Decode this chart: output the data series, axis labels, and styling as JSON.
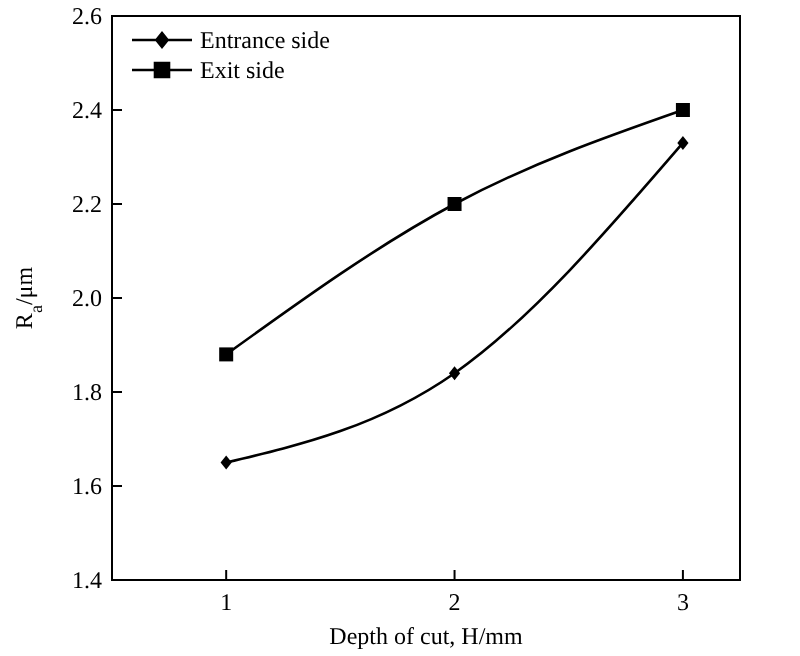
{
  "chart_data": {
    "type": "line",
    "xlabel": "Depth of cut, H/mm",
    "ylabel": "R$_{a}$/μm",
    "x": [
      1,
      2,
      3
    ],
    "series": [
      {
        "name": "Entrance side",
        "color": "#000000",
        "marker": "diamond",
        "values": [
          1.65,
          1.84,
          2.33
        ]
      },
      {
        "name": "Exit side",
        "color": "#000000",
        "marker": "square",
        "values": [
          1.88,
          2.2,
          2.4
        ]
      }
    ],
    "xlim": [
      0.5,
      3.25
    ],
    "xticks": [
      1,
      2,
      3
    ],
    "ylim": [
      1.4,
      2.6
    ],
    "yticks": [
      1.4,
      1.6,
      1.8,
      {
        "value": 2,
        "label": "2.0"
      },
      2.2,
      2.4,
      2.6
    ],
    "legend": "top left",
    "grid": false,
    "line_style": "solid"
  }
}
